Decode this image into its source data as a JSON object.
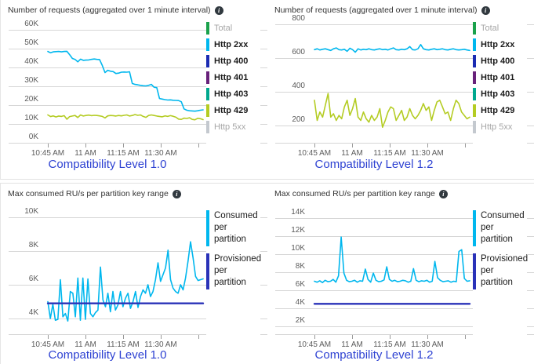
{
  "colors": {
    "cyan": "#00b7ee",
    "lime": "#b4cc23",
    "green": "#1aa14b",
    "navy": "#1b2bb2",
    "navy_line": "#2a32b8",
    "purple": "#68217a",
    "teal": "#00a88e",
    "gray": "#c4c9cf",
    "grid": "#d6d6d6",
    "tick": "#999999",
    "caption_blue": "#2d41d2",
    "title_text": "#333333",
    "axis_text": "#5b5b5b",
    "legend_text": "#1b1b1b",
    "legend_dim_text": "#a6a6a6"
  },
  "icons": {
    "info": "i"
  },
  "chart_data": [
    {
      "type": "line",
      "title": "Number of requests (aggregated over 1 minute interval)",
      "caption": "Compatibility Level 1.0",
      "grid": true,
      "legend_position": "right",
      "ylim": [
        0,
        65000
      ],
      "y_ticks": [
        {
          "label": "60K",
          "value": 60000
        },
        {
          "label": "50K",
          "value": 50000
        },
        {
          "label": "40K",
          "value": 40000
        },
        {
          "label": "30K",
          "value": 30000
        },
        {
          "label": "20K",
          "value": 20000
        },
        {
          "label": "10K",
          "value": 10000
        },
        {
          "label": "0K",
          "value": 0
        }
      ],
      "x_ticks": [
        "10:45 AM",
        "11 AM",
        "11:15 AM",
        "11:30 AM"
      ],
      "legend": [
        {
          "label": "Total",
          "color_key": "green",
          "dim": true
        },
        {
          "label": "Http 2xx",
          "color_key": "cyan",
          "dim": false
        },
        {
          "label": "Http 400",
          "color_key": "navy",
          "dim": false
        },
        {
          "label": "Http 401",
          "color_key": "purple",
          "dim": false
        },
        {
          "label": "Http 403",
          "color_key": "teal",
          "dim": false
        },
        {
          "label": "Http 429",
          "color_key": "lime",
          "dim": false
        },
        {
          "label": "Http 5xx",
          "color_key": "gray",
          "dim": true
        }
      ],
      "series": [
        {
          "name": "Http 2xx",
          "color_key": "cyan",
          "width": 1.6,
          "values": [
            48500,
            47800,
            48300,
            48400,
            48500,
            48300,
            48500,
            48600,
            46800,
            44800,
            44300,
            43000,
            44400,
            43800,
            43900,
            44000,
            44300,
            44500,
            44300,
            44200,
            41000,
            37300,
            38500,
            38000,
            37800,
            36800,
            37000,
            37500,
            37600,
            37500,
            37700,
            31500,
            31000,
            30800,
            30500,
            30300,
            30200,
            30500,
            31000,
            29500,
            29300,
            23500,
            23200,
            22900,
            22700,
            22800,
            22600,
            22500,
            22400,
            21800,
            18000,
            17300,
            17000,
            16900,
            16800,
            17000,
            17300,
            17500
          ]
        },
        {
          "name": "Http 429",
          "color_key": "lime",
          "width": 1.6,
          "values": [
            14800,
            13900,
            14300,
            13700,
            14200,
            14000,
            14400,
            12500,
            13900,
            14200,
            14500,
            13400,
            14800,
            14200,
            14500,
            14700,
            14400,
            14600,
            14500,
            14300,
            14000,
            13200,
            14300,
            14500,
            14400,
            14200,
            14500,
            14300,
            14600,
            14800,
            14200,
            14500,
            15000,
            14600,
            14800,
            14000,
            13500,
            14500,
            14800,
            14500,
            14200,
            14000,
            13800,
            14300,
            14000,
            14400,
            14100,
            13600,
            12600,
            12400,
            13100,
            12900,
            13300,
            12400,
            12200,
            13000,
            12800,
            12300
          ]
        }
      ]
    },
    {
      "type": "line",
      "title": "Number of requests (aggregated over 1 minute interval)",
      "caption": "Compatibility Level 1.2",
      "grid": true,
      "legend_position": "right",
      "ylim": [
        100,
        850
      ],
      "y_ticks": [
        {
          "label": "800",
          "value": 800
        },
        {
          "label": "600",
          "value": 600
        },
        {
          "label": "400",
          "value": 400
        },
        {
          "label": "200",
          "value": 200
        }
      ],
      "x_ticks": [
        "10:45 AM",
        "11 AM",
        "11:15 AM",
        "11:30 AM"
      ],
      "legend": [
        {
          "label": "Total",
          "color_key": "green",
          "dim": true
        },
        {
          "label": "Http 2xx",
          "color_key": "cyan",
          "dim": false
        },
        {
          "label": "Http 400",
          "color_key": "navy",
          "dim": false
        },
        {
          "label": "Http 401",
          "color_key": "purple",
          "dim": false
        },
        {
          "label": "Http 403",
          "color_key": "teal",
          "dim": false
        },
        {
          "label": "Http 429",
          "color_key": "lime",
          "dim": false
        },
        {
          "label": "Http 5xx",
          "color_key": "gray",
          "dim": true
        }
      ],
      "series": [
        {
          "name": "Http 2xx",
          "color_key": "cyan",
          "width": 1.6,
          "values": [
            650,
            655,
            648,
            652,
            655,
            650,
            645,
            655,
            660,
            650,
            648,
            652,
            640,
            658,
            650,
            635,
            655,
            648,
            652,
            650,
            655,
            650,
            648,
            652,
            655,
            650,
            652,
            648,
            655,
            660,
            650,
            648,
            652,
            650,
            655,
            668,
            650,
            648,
            655,
            680,
            655,
            650,
            648,
            652,
            655,
            650,
            652,
            655,
            650,
            648,
            652,
            655,
            650,
            648,
            650,
            652,
            648,
            645
          ]
        },
        {
          "name": "Http 429",
          "color_key": "lime",
          "width": 1.6,
          "values": [
            350,
            230,
            280,
            250,
            320,
            390,
            250,
            270,
            230,
            260,
            240,
            310,
            350,
            260,
            300,
            360,
            250,
            230,
            280,
            240,
            220,
            260,
            230,
            250,
            300,
            190,
            230,
            280,
            310,
            300,
            230,
            260,
            290,
            230,
            250,
            300,
            260,
            240,
            260,
            290,
            330,
            290,
            310,
            230,
            290,
            340,
            350,
            310,
            270,
            280,
            230,
            300,
            350,
            330,
            280,
            260,
            240,
            250
          ]
        }
      ]
    },
    {
      "type": "line",
      "title": "Max consumed RU/s per partition key range",
      "caption": "Compatibility Level 1.0",
      "grid": true,
      "legend_position": "right",
      "ylim": [
        3100,
        10600
      ],
      "y_ticks": [
        {
          "label": "10K",
          "value": 10000
        },
        {
          "label": "8K",
          "value": 8000
        },
        {
          "label": "6K",
          "value": 6000
        },
        {
          "label": "4K",
          "value": 4000
        }
      ],
      "x_ticks": [
        "10:45 AM",
        "11 AM",
        "11:15 AM",
        "11:30 AM"
      ],
      "legend": [
        {
          "label": "Consumed per partition",
          "color_key": "cyan",
          "dim": false
        },
        {
          "label": "Provisioned per partition",
          "color_key": "navy_line",
          "dim": false
        }
      ],
      "series": [
        {
          "name": "Consumed per partition",
          "color_key": "cyan",
          "width": 1.6,
          "values": [
            5000,
            4000,
            4850,
            3900,
            3950,
            6300,
            4100,
            4300,
            3850,
            5600,
            5500,
            4100,
            6400,
            3900,
            6400,
            3950,
            6350,
            4300,
            4100,
            4350,
            4500,
            7050,
            5100,
            4700,
            5500,
            4400,
            5600,
            4500,
            4800,
            5600,
            4700,
            5200,
            5500,
            4600,
            5000,
            5600,
            4650,
            5300,
            5700,
            5500,
            6000,
            5300,
            5600,
            6300,
            7300,
            6200,
            6600,
            7000,
            8050,
            6300,
            5800,
            5600,
            5500,
            6000,
            5700,
            6400,
            7400,
            8550,
            7600,
            6500,
            6250,
            6300,
            6350
          ]
        },
        {
          "name": "Provisioned per partition",
          "color_key": "navy_line",
          "width": 2.4,
          "values": [
            4900,
            4900
          ]
        }
      ]
    },
    {
      "type": "line",
      "title": "Max consumed RU/s per partition key range",
      "caption": "Compatibility Level 1.2",
      "grid": true,
      "legend_position": "right",
      "ylim": [
        1200,
        14800
      ],
      "y_ticks": [
        {
          "label": "14K",
          "value": 14000
        },
        {
          "label": "12K",
          "value": 12000
        },
        {
          "label": "10K",
          "value": 10000
        },
        {
          "label": "8K",
          "value": 8000
        },
        {
          "label": "6K",
          "value": 6000
        },
        {
          "label": "4K",
          "value": 4000
        },
        {
          "label": "2K",
          "value": 2000
        }
      ],
      "x_ticks": [
        "10:45 AM",
        "11 AM",
        "11:15 AM",
        "11:30 AM"
      ],
      "legend": [
        {
          "label": "Consumed per partition",
          "color_key": "cyan",
          "dim": false
        },
        {
          "label": "Provisioned per partition",
          "color_key": "navy_line",
          "dim": false
        }
      ],
      "series": [
        {
          "name": "Consumed per partition",
          "color_key": "cyan",
          "width": 1.6,
          "values": [
            7000,
            6900,
            7050,
            6850,
            7100,
            6950,
            7000,
            7200,
            6900,
            7600,
            11900,
            7900,
            7100,
            6950,
            7000,
            7100,
            6900,
            7050,
            7000,
            8350,
            7200,
            6900,
            7900,
            7100,
            6950,
            7000,
            7150,
            8600,
            7200,
            7000,
            7100,
            6950,
            7000,
            7100,
            7050,
            6900,
            7000,
            8400,
            7100,
            6950,
            7050,
            7000,
            7100,
            6900,
            7000,
            9200,
            7400,
            7100,
            6950,
            7000,
            7050,
            6900,
            7000,
            6950,
            10300,
            10500,
            7300,
            7000,
            7050
          ]
        },
        {
          "name": "Provisioned per partition",
          "color_key": "navy_line",
          "width": 2.4,
          "values": [
            4500,
            4500
          ]
        }
      ]
    }
  ]
}
